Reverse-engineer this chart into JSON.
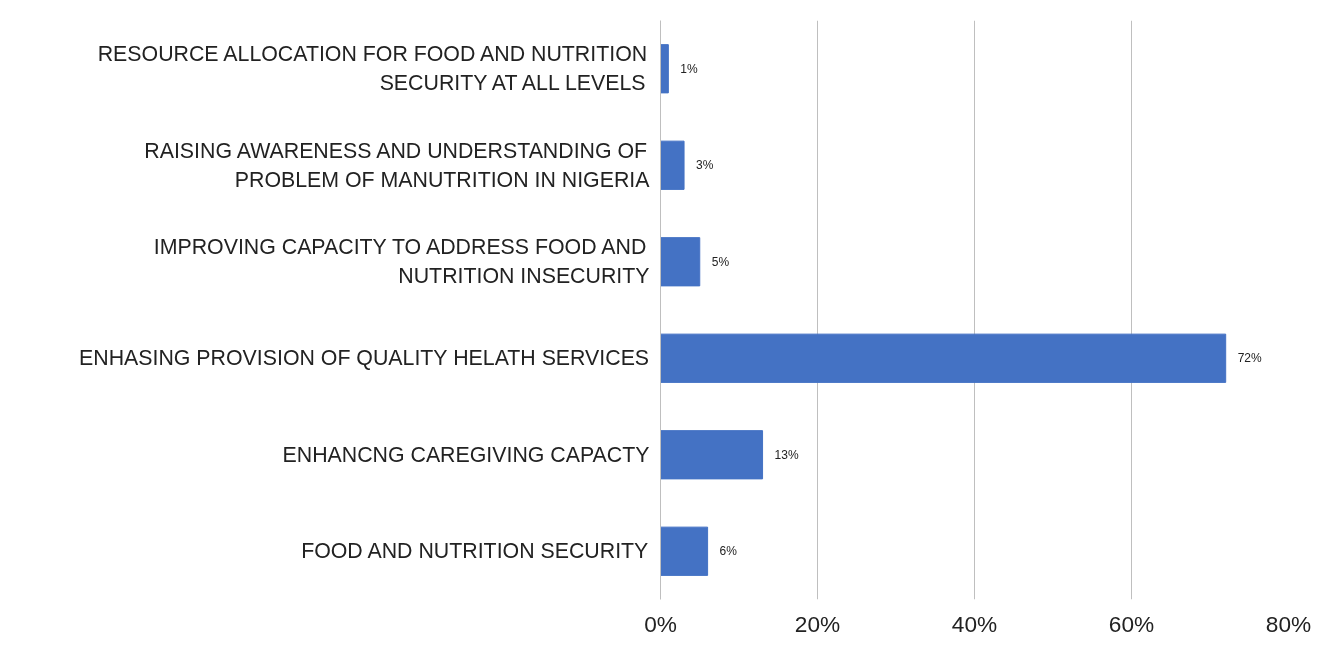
{
  "chart_data": {
    "type": "bar",
    "orientation": "horizontal",
    "categories": [
      "RESOURCE ALLOCATION FOR FOOD AND NUTRITION SECURITY AT ALL LEVELS",
      "RAISING AWARENESS AND UNDERSTANDING OF PROBLEM OF MANUTRITION IN NIGERIA",
      "IMPROVING CAPACITY TO ADDRESS FOOD AND NUTRITION INSECURITY",
      "ENHASING PROVISION OF QUALITY HELATH SERVICES",
      "ENHANCNG CAREGIVING CAPACTY",
      "FOOD AND NUTRITION SECURITY"
    ],
    "values": [
      1,
      3,
      5,
      72,
      13,
      6
    ],
    "value_labels": [
      "1%",
      "3%",
      "5%",
      "72%",
      "13%",
      "6%"
    ],
    "color": "#4472c4",
    "xlim": [
      0,
      80
    ],
    "xticks": [
      {
        "value": 0,
        "label": "0%"
      },
      {
        "value": 20,
        "label": "20%"
      },
      {
        "value": 40,
        "label": "40%"
      },
      {
        "value": 60,
        "label": "60%"
      },
      {
        "value": 80,
        "label": "80%"
      }
    ],
    "grid": "x"
  }
}
